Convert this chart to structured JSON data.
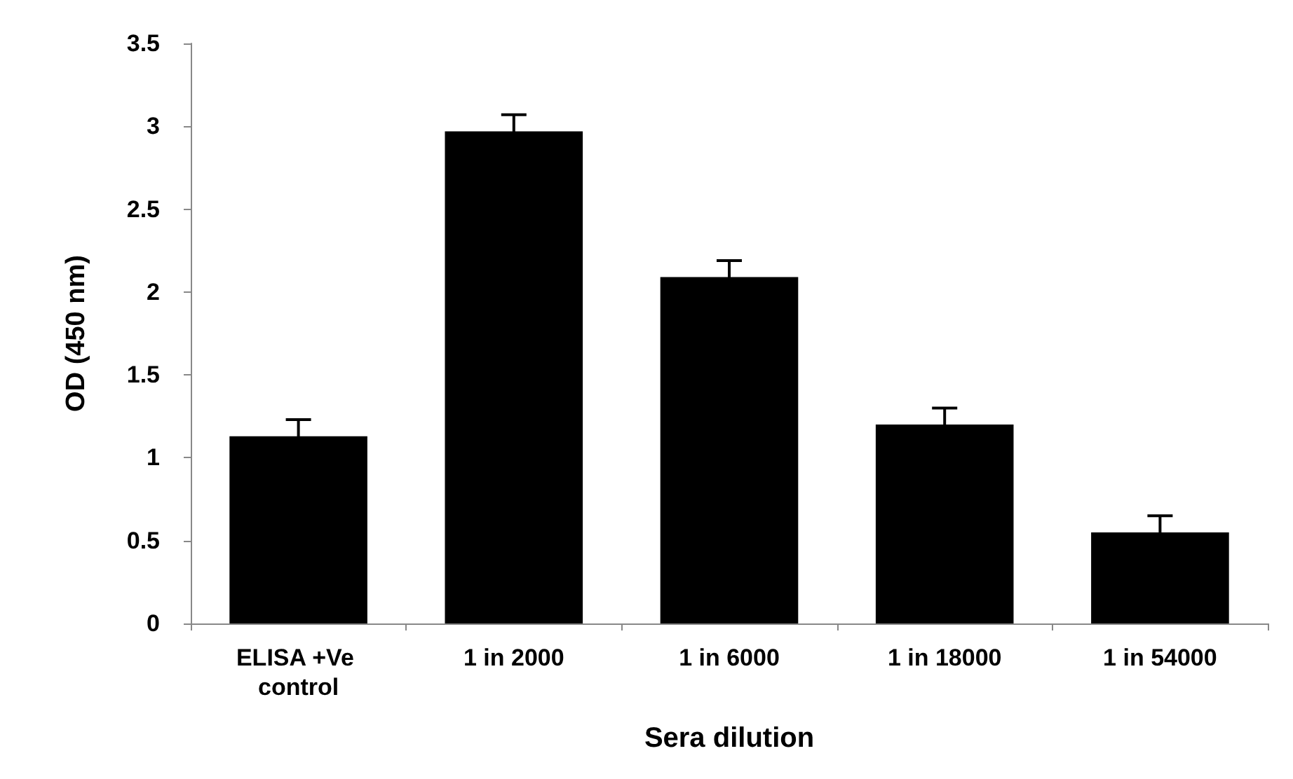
{
  "chart_data": {
    "type": "bar",
    "xlabel": "Sera dilution",
    "ylabel": "OD (450 nm)",
    "categories": [
      "ELISA +Ve control",
      "1 in 2000",
      "1 in 6000",
      "1 in 18000",
      "1 in 54000"
    ],
    "values": [
      1.13,
      2.97,
      2.09,
      1.2,
      0.55
    ],
    "errors": [
      0.1,
      0.1,
      0.1,
      0.1,
      0.1
    ],
    "color": "#000000",
    "ylim": [
      0,
      3.5
    ],
    "yticks": [
      0,
      0.5,
      1,
      1.5,
      2,
      2.5,
      3,
      3.5
    ],
    "grid": false
  }
}
